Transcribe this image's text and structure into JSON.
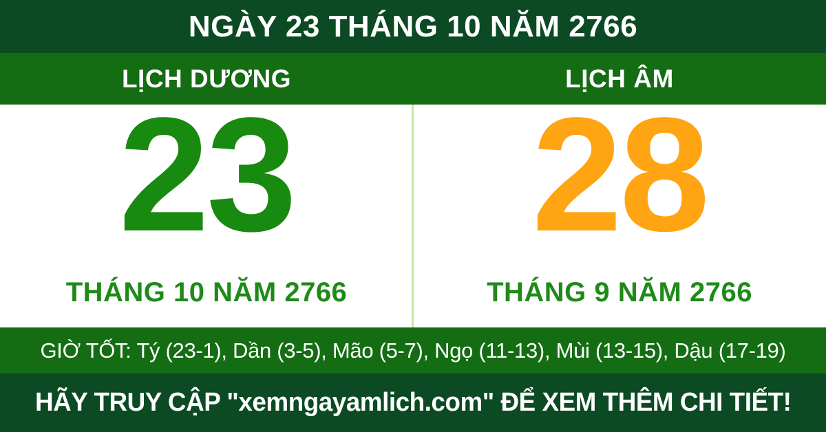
{
  "header": {
    "title": "NGÀY 23 THÁNG 10 NĂM 2766"
  },
  "calendars": {
    "solar": {
      "label": "LỊCH DƯƠNG",
      "day": "23",
      "month_year": "THÁNG 10 NĂM 2766"
    },
    "lunar": {
      "label": "LỊCH ÂM",
      "day": "28",
      "month_year": "THÁNG 9 NĂM 2766"
    }
  },
  "good_hours": {
    "text": "GIỜ TỐT: Tý (23-1), Dần (3-5), Mão (5-7), Ngọ (11-13), Mùi (13-15), Dậu (17-19)"
  },
  "footer": {
    "text": "HÃY TRUY CẬP \"xemngayamlich.com\" ĐỂ XEM THÊM CHI TIẾT!"
  },
  "colors": {
    "dark_green_bar": "#0b4a23",
    "medium_green_bar": "#146c13",
    "solar_day_green": "#188a0f",
    "lunar_day_orange": "#ffa412",
    "month_text_green": "#1f8a1a",
    "divider_light_green": "#c9e59b",
    "panel_background": "#ffffff",
    "text_white": "#ffffff"
  }
}
